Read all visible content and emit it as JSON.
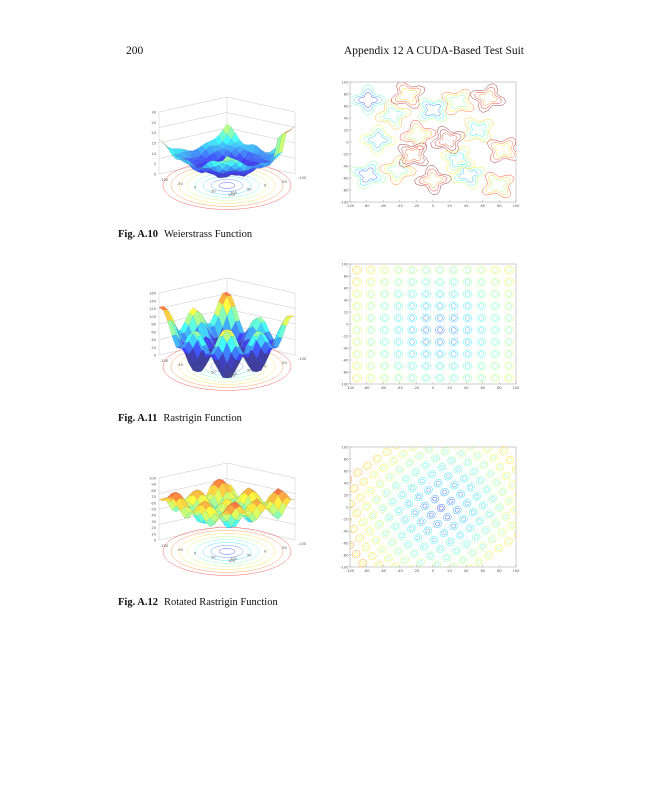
{
  "header": {
    "page_number": "200",
    "running_head": "Appendix 12 A CUDA-Based Test Suit"
  },
  "figures": [
    {
      "label": "Fig. A.10",
      "caption": "Weierstrass Function",
      "surface": {
        "zticks": [
          "30",
          "25",
          "20",
          "15",
          "10",
          "5",
          "0"
        ],
        "xticks": [
          "-100",
          "-50",
          "0",
          "50",
          "100"
        ],
        "yticks": [
          "100",
          "50",
          "0",
          "-50",
          "-100"
        ]
      },
      "contour": {
        "yticks": [
          "100",
          "80",
          "60",
          "40",
          "20",
          "0",
          "-20",
          "-40",
          "-60",
          "-80",
          "-100"
        ],
        "xticks": [
          "-100",
          "-80",
          "-60",
          "-40",
          "-20",
          "0",
          "20",
          "40",
          "60",
          "80",
          "100"
        ]
      }
    },
    {
      "label": "Fig. A.11",
      "caption": "Rastrigin Function",
      "surface": {
        "zticks": [
          "160",
          "140",
          "120",
          "100",
          "80",
          "60",
          "40",
          "20",
          "0"
        ],
        "xticks": [
          "-100",
          "-50",
          "0",
          "50",
          "100"
        ],
        "yticks": [
          "100",
          "50",
          "0",
          "-50",
          "-100"
        ]
      },
      "contour": {
        "yticks": [
          "100",
          "80",
          "60",
          "40",
          "20",
          "0",
          "-20",
          "-40",
          "-60",
          "-80",
          "-100"
        ],
        "xticks": [
          "-100",
          "-80",
          "-60",
          "-40",
          "-20",
          "0",
          "20",
          "40",
          "60",
          "80",
          "100"
        ]
      }
    },
    {
      "label": "Fig. A.12",
      "caption": "Rotated Rastrigin Function",
      "surface": {
        "zticks": [
          "100",
          "90",
          "80",
          "70",
          "60",
          "50",
          "40",
          "30",
          "20",
          "10",
          "0"
        ],
        "xticks": [
          "-100",
          "-50",
          "0",
          "50",
          "100"
        ],
        "yticks": [
          "100",
          "50",
          "0",
          "-50",
          "-100"
        ]
      },
      "contour": {
        "yticks": [
          "100",
          "80",
          "60",
          "40",
          "20",
          "0",
          "-20",
          "-40",
          "-60",
          "-80",
          "-100"
        ],
        "xticks": [
          "-100",
          "-80",
          "-60",
          "-40",
          "-20",
          "0",
          "20",
          "40",
          "60",
          "80",
          "100"
        ]
      }
    }
  ]
}
